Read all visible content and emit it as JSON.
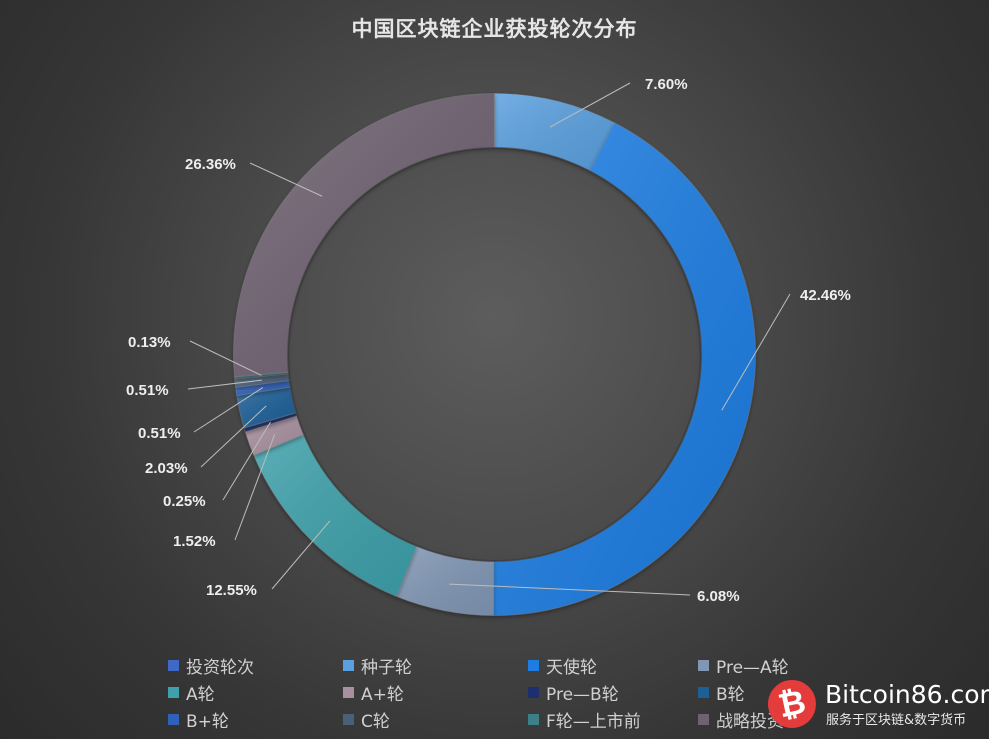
{
  "chart_data": {
    "type": "pie",
    "variant": "donut",
    "title": "中国区块链企业获投轮次分布",
    "categories": [
      "投资轮次",
      "种子轮",
      "天使轮",
      "Pre—A轮",
      "A轮",
      "A+轮",
      "Pre—B轮",
      "B轮",
      "B+轮",
      "C轮",
      "F轮—上市前",
      "战略投资"
    ],
    "colors": [
      "#3f68c7",
      "#5aa0df",
      "#1d7de2",
      "#8096b4",
      "#3ea0aa",
      "#a8909f",
      "#1d2f6e",
      "#1f5f98",
      "#2f61b8",
      "#4c5f79",
      "#3d7f89",
      "#6e6170"
    ],
    "slices": [
      {
        "label": "种子轮",
        "value": 7.6,
        "display": "7.60%",
        "color": "#5aa0df"
      },
      {
        "label": "天使轮",
        "value": 42.46,
        "display": "42.46%",
        "color": "#1d7de2"
      },
      {
        "label": "Pre—A轮",
        "value": 6.08,
        "display": "6.08%",
        "color": "#8096b4"
      },
      {
        "label": "A轮",
        "value": 12.55,
        "display": "12.55%",
        "color": "#3ea0aa"
      },
      {
        "label": "A+轮",
        "value": 1.52,
        "display": "1.52%",
        "color": "#a8909f"
      },
      {
        "label": "Pre—B轮",
        "value": 0.25,
        "display": "0.25%",
        "color": "#1d2f6e"
      },
      {
        "label": "B轮",
        "value": 2.03,
        "display": "2.03%",
        "color": "#1f5f98"
      },
      {
        "label": "B+轮",
        "value": 0.51,
        "display": "0.51%",
        "color": "#2f61b8"
      },
      {
        "label": "C轮",
        "value": 0.51,
        "display": "0.51%",
        "color": "#4c5f79"
      },
      {
        "label": "F轮—上市前",
        "value": 0.13,
        "display": "0.13%",
        "color": "#3d7f89"
      },
      {
        "label": "战略投资",
        "value": 26.36,
        "display": "26.36%",
        "color": "#6e6170"
      }
    ],
    "legend": {
      "position": "bottom",
      "items": [
        {
          "label": "投资轮次",
          "color": "#3f68c7"
        },
        {
          "label": "种子轮",
          "color": "#5aa0df"
        },
        {
          "label": "天使轮",
          "color": "#1d7de2"
        },
        {
          "label": "Pre—A轮",
          "color": "#8096b4"
        },
        {
          "label": "A轮",
          "color": "#3ea0aa"
        },
        {
          "label": "A+轮",
          "color": "#a8909f"
        },
        {
          "label": "Pre—B轮",
          "color": "#1d2f6e"
        },
        {
          "label": "B轮",
          "color": "#1f5f98"
        },
        {
          "label": "B+轮",
          "color": "#2f61b8"
        },
        {
          "label": "C轮",
          "color": "#4c5f79"
        },
        {
          "label": "F轮—上市前",
          "color": "#3d7f89"
        },
        {
          "label": "战略投资",
          "color": "#6e6170"
        }
      ]
    },
    "grid": false
  },
  "watermark": {
    "logo_symbol": "₿",
    "site": "Bitcoin86.com",
    "tagline": "服务于区块链&数字货币"
  }
}
